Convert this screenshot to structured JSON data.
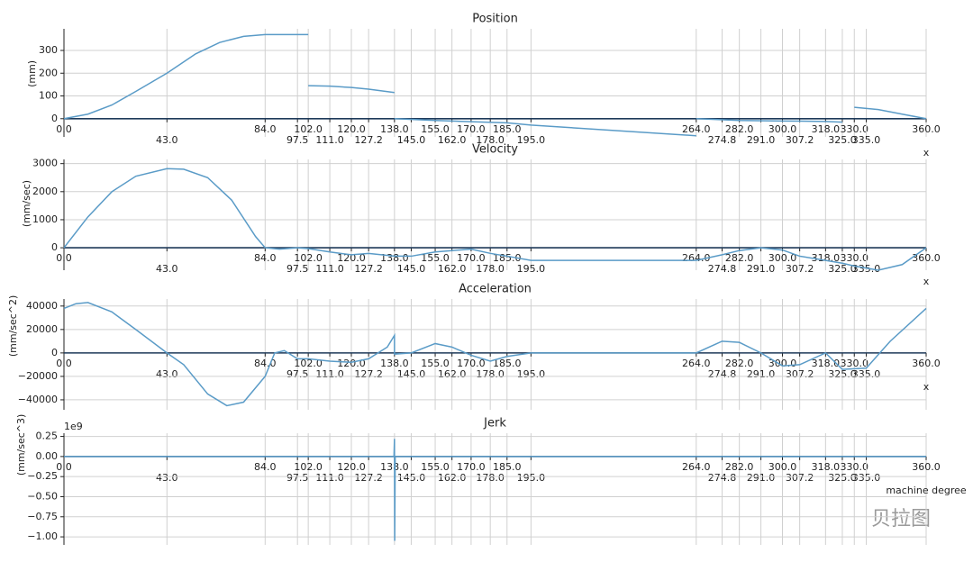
{
  "chart_data": [
    {
      "type": "line",
      "title": "Position",
      "y_label": "(mm)",
      "x_label": "x",
      "xlim": [
        0,
        360
      ],
      "ylim": [
        -80,
        395
      ],
      "yticks": [
        0,
        100,
        200,
        300
      ],
      "xticks": [
        {
          "value": 0,
          "label": "0.0"
        },
        {
          "value": 43,
          "label": "43.0"
        },
        {
          "value": 84,
          "label": "84.0"
        },
        97.5,
        {
          "value": 102,
          "label": "102.0"
        },
        {
          "value": 111,
          "label": "111.0"
        },
        {
          "value": 120,
          "label": "120.0"
        },
        127.2,
        {
          "value": 138,
          "label": "138.0"
        },
        {
          "value": 145,
          "label": "145.0"
        },
        {
          "value": 155,
          "label": "155.0"
        },
        {
          "value": 162,
          "label": "162.0"
        },
        {
          "value": 170,
          "label": "170.0"
        },
        {
          "value": 178,
          "label": "178.0"
        },
        {
          "value": 185,
          "label": "185.0"
        },
        {
          "value": 195,
          "label": "195.0"
        },
        {
          "value": 264,
          "label": "264.0"
        },
        274.8,
        {
          "value": 282,
          "label": "282.0"
        },
        {
          "value": 291,
          "label": "291.0"
        },
        {
          "value": 300,
          "label": "300.0"
        },
        307.2,
        {
          "value": 318,
          "label": "318.0"
        },
        {
          "value": 325,
          "label": "325.0"
        },
        {
          "value": 330,
          "label": "330.0"
        },
        {
          "value": 335,
          "label": "335.0"
        },
        {
          "value": 360,
          "label": "360.0"
        }
      ],
      "grid": true,
      "x": [
        0,
        10,
        20,
        30,
        43,
        55,
        65,
        75,
        84,
        102,
        102,
        102,
        111,
        120,
        127.2,
        138,
        138,
        138,
        155,
        170,
        185,
        195,
        264,
        264,
        264,
        282,
        300,
        318,
        325,
        325,
        330,
        340,
        350,
        360
      ],
      "series": [
        {
          "color": "#5a9bc7",
          "values": [
            0,
            20,
            60,
            120,
            200,
            285,
            335,
            362,
            370,
            370,
            null,
            145,
            143,
            137,
            130,
            115,
            null,
            0,
            -8,
            -13,
            -18,
            -28,
            -75,
            null,
            0,
            -8,
            -10,
            -12,
            -15,
            null,
            50,
            40,
            20,
            0
          ]
        }
      ]
    },
    {
      "type": "line",
      "title": "Velocity",
      "y_label": "(mm/sec)",
      "x_label": "x",
      "xlim": [
        0,
        360
      ],
      "ylim": [
        -800,
        3150
      ],
      "yticks": [
        0,
        1000,
        2000,
        3000
      ],
      "xticks": [
        {
          "value": 0,
          "label": "0.0"
        },
        {
          "value": 43,
          "label": "43.0"
        },
        {
          "value": 84,
          "label": "84.0"
        },
        97.5,
        {
          "value": 102,
          "label": "102.0"
        },
        {
          "value": 111,
          "label": "111.0"
        },
        {
          "value": 120,
          "label": "120.0"
        },
        127.2,
        {
          "value": 138,
          "label": "138.0"
        },
        {
          "value": 145,
          "label": "145.0"
        },
        {
          "value": 155,
          "label": "155.0"
        },
        {
          "value": 162,
          "label": "162.0"
        },
        {
          "value": 170,
          "label": "170.0"
        },
        {
          "value": 178,
          "label": "178.0"
        },
        {
          "value": 185,
          "label": "185.0"
        },
        {
          "value": 195,
          "label": "195.0"
        },
        {
          "value": 264,
          "label": "264.0"
        },
        274.8,
        {
          "value": 282,
          "label": "282.0"
        },
        {
          "value": 291,
          "label": "291.0"
        },
        {
          "value": 300,
          "label": "300.0"
        },
        307.2,
        {
          "value": 318,
          "label": "318.0"
        },
        {
          "value": 325,
          "label": "325.0"
        },
        {
          "value": 330,
          "label": "330.0"
        },
        {
          "value": 335,
          "label": "335.0"
        },
        {
          "value": 360,
          "label": "360.0"
        }
      ],
      "grid": true,
      "x": [
        0,
        10,
        20,
        30,
        43,
        50,
        60,
        70,
        80,
        84,
        90,
        97.5,
        102,
        111,
        120,
        127.2,
        138,
        145,
        155,
        162,
        170,
        178,
        185,
        195,
        264,
        274.8,
        282,
        291,
        300,
        307.2,
        318,
        325,
        330,
        340,
        350,
        360
      ],
      "series": [
        {
          "color": "#5a9bc7",
          "values": [
            0,
            1100,
            2000,
            2550,
            2820,
            2800,
            2500,
            1700,
            400,
            0,
            -50,
            0,
            -30,
            -150,
            -250,
            -200,
            -300,
            -300,
            -150,
            -100,
            -50,
            -200,
            -300,
            -450,
            -450,
            -250,
            -100,
            0,
            -80,
            -300,
            -450,
            -550,
            -650,
            -800,
            -600,
            0
          ]
        }
      ]
    },
    {
      "type": "line",
      "title": "Acceleration",
      "y_label": "(mm/sec^2)",
      "x_label": "x",
      "xlim": [
        0,
        360
      ],
      "ylim": [
        -48500,
        46000
      ],
      "yticks": [
        {
          "value": -40000,
          "label": "−40000"
        },
        {
          "value": -20000,
          "label": "−20000"
        },
        0,
        20000,
        40000
      ],
      "xticks": [
        {
          "value": 0,
          "label": "0.0"
        },
        {
          "value": 43,
          "label": "43.0"
        },
        {
          "value": 84,
          "label": "84.0"
        },
        97.5,
        {
          "value": 102,
          "label": "102.0"
        },
        {
          "value": 111,
          "label": "111.0"
        },
        {
          "value": 120,
          "label": "120.0"
        },
        127.2,
        {
          "value": 138,
          "label": "138.0"
        },
        {
          "value": 145,
          "label": "145.0"
        },
        {
          "value": 155,
          "label": "155.0"
        },
        {
          "value": 162,
          "label": "162.0"
        },
        {
          "value": 170,
          "label": "170.0"
        },
        {
          "value": 178,
          "label": "178.0"
        },
        {
          "value": 185,
          "label": "185.0"
        },
        {
          "value": 195,
          "label": "195.0"
        },
        {
          "value": 264,
          "label": "264.0"
        },
        274.8,
        {
          "value": 282,
          "label": "282.0"
        },
        {
          "value": 291,
          "label": "291.0"
        },
        {
          "value": 300,
          "label": "300.0"
        },
        307.2,
        {
          "value": 318,
          "label": "318.0"
        },
        {
          "value": 325,
          "label": "325.0"
        },
        {
          "value": 330,
          "label": "330.0"
        },
        {
          "value": 335,
          "label": "335.0"
        },
        {
          "value": 360,
          "label": "360.0"
        }
      ],
      "grid": true,
      "x": [
        0,
        5,
        10,
        20,
        30,
        43,
        50,
        60,
        68,
        75,
        84,
        88,
        92,
        97.5,
        102,
        111,
        120,
        127.2,
        135,
        138,
        138,
        145,
        155,
        162,
        170,
        178,
        185,
        195,
        264,
        274.8,
        282,
        291,
        300,
        307.2,
        318,
        325,
        335,
        345,
        360
      ],
      "series": [
        {
          "color": "#5a9bc7",
          "values": [
            38000,
            42000,
            43000,
            35000,
            20000,
            0,
            -10000,
            -35000,
            -45000,
            -42000,
            -20000,
            0,
            2000,
            -5000,
            -5000,
            -7000,
            -8000,
            -5000,
            5000,
            15000,
            -1000,
            0,
            8000,
            5000,
            -2000,
            -7000,
            -3000,
            0,
            0,
            10000,
            9000,
            0,
            -11000,
            -10000,
            0,
            -14000,
            -13000,
            10000,
            38000
          ]
        }
      ]
    },
    {
      "type": "line",
      "title": "Jerk",
      "y_label": "(mm/sec^3)",
      "x_label": "machine degree",
      "offset_label": "1e9",
      "xlim": [
        0,
        360
      ],
      "ylim": [
        -1.1,
        0.29
      ],
      "yticks": [
        {
          "value": -1,
          "label": "−1.00"
        },
        {
          "value": -0.75,
          "label": "−0.75"
        },
        {
          "value": -0.5,
          "label": "−0.50"
        },
        {
          "value": -0.25,
          "label": "−0.25"
        },
        {
          "value": 0,
          "label": "0.00"
        },
        0.25
      ],
      "xticks": [
        {
          "value": 0,
          "label": "0.0"
        },
        {
          "value": 43,
          "label": "43.0"
        },
        {
          "value": 84,
          "label": "84.0"
        },
        97.5,
        {
          "value": 102,
          "label": "102.0"
        },
        {
          "value": 111,
          "label": "111.0"
        },
        {
          "value": 120,
          "label": "120.0"
        },
        127.2,
        {
          "value": 138,
          "label": "138.0"
        },
        {
          "value": 145,
          "label": "145.0"
        },
        {
          "value": 155,
          "label": "155.0"
        },
        {
          "value": 162,
          "label": "162.0"
        },
        {
          "value": 170,
          "label": "170.0"
        },
        {
          "value": 178,
          "label": "178.0"
        },
        {
          "value": 185,
          "label": "185.0"
        },
        {
          "value": 195,
          "label": "195.0"
        },
        {
          "value": 264,
          "label": "264.0"
        },
        274.8,
        {
          "value": 282,
          "label": "282.0"
        },
        {
          "value": 291,
          "label": "291.0"
        },
        {
          "value": 300,
          "label": "300.0"
        },
        307.2,
        {
          "value": 318,
          "label": "318.0"
        },
        {
          "value": 325,
          "label": "325.0"
        },
        {
          "value": 330,
          "label": "330.0"
        },
        {
          "value": 335,
          "label": "335.0"
        },
        {
          "value": 360,
          "label": "360.0"
        }
      ],
      "grid": true,
      "x": [
        0,
        137.8,
        138,
        138.1,
        138.3,
        360
      ],
      "series": [
        {
          "color": "#5a9bc7",
          "values": [
            0,
            0,
            0.22,
            -1.05,
            0,
            0
          ]
        }
      ]
    }
  ],
  "watermark": "贝拉图"
}
